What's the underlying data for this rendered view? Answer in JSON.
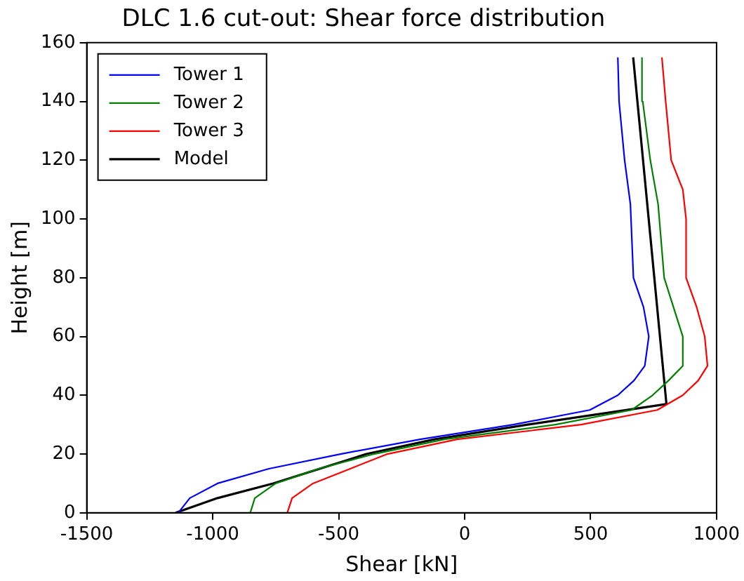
{
  "chart_data": {
    "type": "line",
    "title": "DLC 1.6 cut-out: Shear force distribution",
    "xlabel": "Shear [kN]",
    "ylabel": "Height [m]",
    "xlim": [
      -1500,
      1000
    ],
    "xticks": [
      -1500,
      -1000,
      -500,
      0,
      500,
      1000
    ],
    "ylim": [
      0,
      160
    ],
    "yticks": [
      0,
      20,
      40,
      60,
      80,
      100,
      120,
      140,
      160
    ],
    "grid": false,
    "legend": "top left",
    "marker": "none",
    "line_style": "solid",
    "series": [
      {
        "name": "Tower 1",
        "color": "#0000ff",
        "x": [
          -1137,
          -1091,
          -981,
          -777,
          -493,
          -177,
          193,
          497,
          608,
          672,
          715,
          731,
          710,
          670,
          658,
          635,
          613,
          608
        ],
        "values": [
          0,
          5,
          10,
          15,
          20,
          25,
          30,
          35,
          40,
          45,
          50,
          60,
          70,
          80,
          105,
          120,
          140,
          155
        ]
      },
      {
        "name": "Tower 2",
        "color": "#008000",
        "x": [
          -851,
          -833,
          -750,
          -580,
          -360,
          -80,
          360,
          663,
          746,
          809,
          866,
          866,
          792,
          768,
          737,
          707,
          704
        ],
        "values": [
          0,
          5,
          10,
          15,
          20,
          25,
          30,
          35,
          40,
          45,
          50,
          60,
          80,
          105,
          120,
          140,
          155
        ]
      },
      {
        "name": "Tower 3",
        "color": "#ff0000",
        "x": [
          -704,
          -685,
          -602,
          -454,
          -307,
          -30,
          462,
          765,
          866,
          927,
          964,
          953,
          921,
          879,
          879,
          866,
          820,
          798,
          783
        ],
        "values": [
          0,
          5,
          10,
          15,
          20,
          25,
          30,
          35,
          40,
          45,
          50,
          60,
          70,
          80,
          100,
          110,
          120,
          140,
          155
        ]
      },
      {
        "name": "Model",
        "color": "#000000",
        "x": [
          -1147,
          -981,
          -760,
          -575,
          -390,
          -120,
          250,
          801,
          669
        ],
        "values": [
          0,
          5,
          10,
          15,
          20,
          25,
          30,
          37,
          155
        ]
      }
    ]
  }
}
